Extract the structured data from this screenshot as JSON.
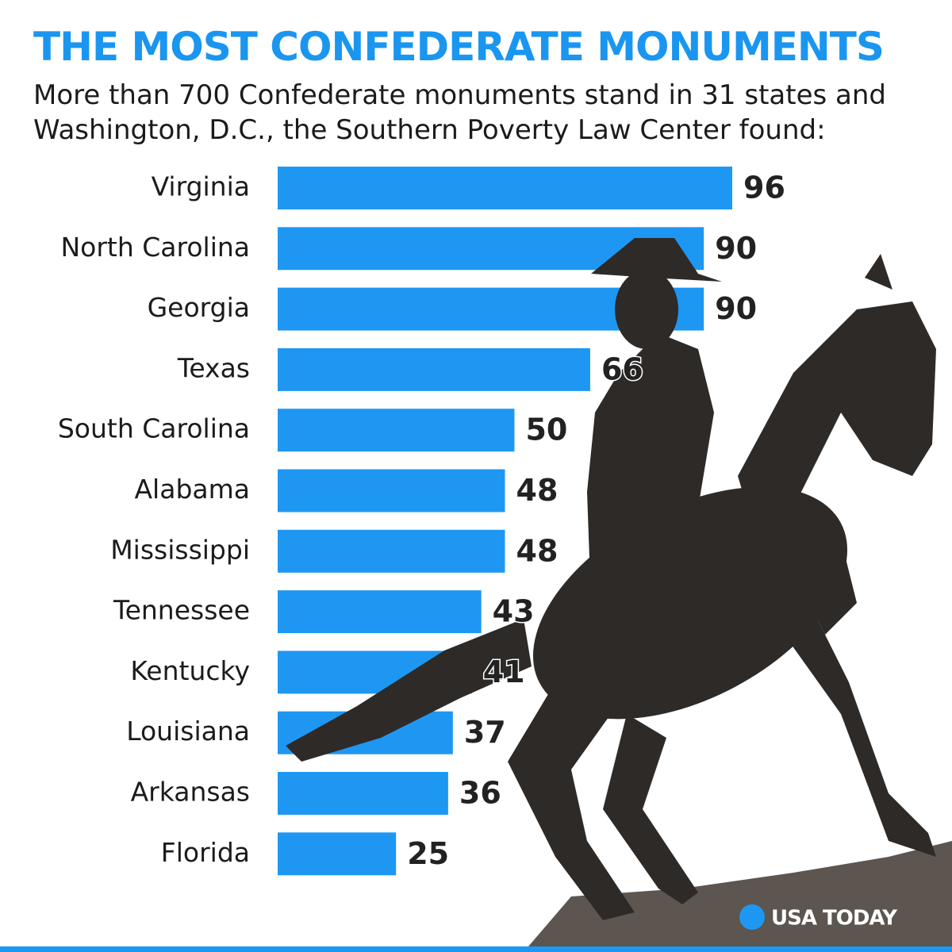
{
  "chart_data": {
    "type": "bar",
    "title": "THE MOST CONFEDERATE MONUMENTS",
    "subtitle": "More than 700 Confederate monuments stand in 31 states and Washington, D.C., the Southern Poverty Law Center found:",
    "categories": [
      "Virginia",
      "North Carolina",
      "Georgia",
      "Texas",
      "South Carolina",
      "Alabama",
      "Mississippi",
      "Tennessee",
      "Kentucky",
      "Louisiana",
      "Arkansas",
      "Florida"
    ],
    "values": [
      96,
      90,
      90,
      66,
      50,
      48,
      48,
      43,
      41,
      37,
      36,
      25
    ],
    "color": "#1e97f3",
    "source": "USA TODAY"
  }
}
